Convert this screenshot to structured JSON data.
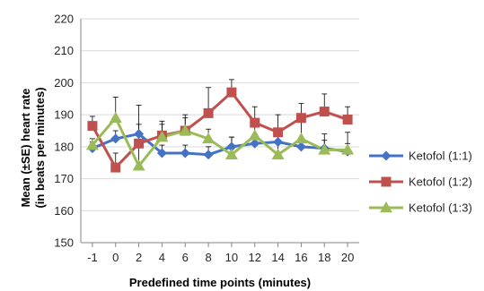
{
  "chart_data": {
    "type": "line",
    "title": "",
    "xlabel": "Predefined time points (minutes)",
    "ylabel_line1": "Mean (±SE) heart rate",
    "ylabel_line2": "(in beats per minutes)",
    "categories": [
      "-1",
      "0",
      "2",
      "4",
      "6",
      "8",
      "10",
      "12",
      "14",
      "16",
      "18",
      "20"
    ],
    "ylim": [
      150,
      220
    ],
    "yticks": [
      150,
      160,
      170,
      180,
      190,
      200,
      210,
      220
    ],
    "grid": "horizontal",
    "legend_position": "right",
    "series": [
      {
        "name": "Ketofol (1:1)",
        "color": "#4472C4",
        "marker": "diamond",
        "values": [
          179.5,
          182.5,
          184,
          178,
          178,
          177.5,
          180,
          181,
          181.5,
          180,
          179.5,
          178.5
        ],
        "errors": [
          2,
          2.5,
          3,
          2.5,
          2.5,
          2.5,
          3,
          2,
          2.5,
          2.5,
          2.5,
          2.5
        ]
      },
      {
        "name": "Ketofol (1:2)",
        "color": "#C0504D",
        "marker": "square",
        "values": [
          186.5,
          173.5,
          181,
          183.5,
          185,
          190.5,
          197,
          187.5,
          184.5,
          189,
          191,
          188.5
        ],
        "errors": [
          3,
          4.5,
          3.5,
          3.5,
          4,
          8,
          4,
          5,
          5.5,
          4.5,
          5.5,
          4
        ]
      },
      {
        "name": "Ketofol (1:3)",
        "color": "#9BBB59",
        "marker": "triangle",
        "values": [
          180.5,
          189,
          174,
          183,
          185,
          182.5,
          177.5,
          183.5,
          177.5,
          182.5,
          179,
          179
        ],
        "errors": [
          2,
          6.5,
          19,
          5,
          5,
          3,
          5.5,
          5,
          7,
          6.5,
          5,
          5.5
        ]
      }
    ]
  }
}
